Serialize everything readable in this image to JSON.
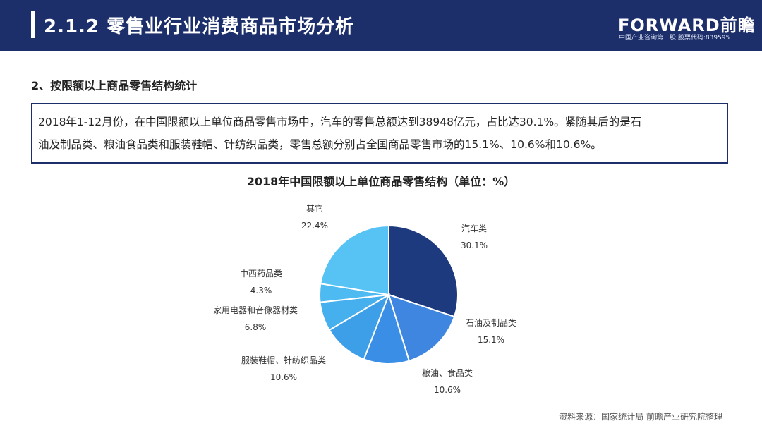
{
  "header": {
    "title": "2.1.2  零售业行业消费商品市场分析",
    "logo": "FORWARD前瞻",
    "logo_sub": "中国产业咨询第一股  股票代码:839595"
  },
  "section_title": "2、按限额以上商品零售结构统计",
  "summary": {
    "line1": "2018年1-12月份，在中国限额以上单位商品零售市场中，汽车的零售总额达到38948亿元，占比达30.1%。紧随其后的是石",
    "line2": "油及制品类、粮油食品类和服装鞋帽、针纺织品类，零售总额分别占全国商品零售市场的15.1%、10.6%和10.6%。"
  },
  "source": "资料来源：国家统计局 前瞻产业研究院整理",
  "chart_data": {
    "type": "pie",
    "title": "2018年中国限额以上单位商品零售结构（单位：%）",
    "slices": [
      {
        "label": "汽车类",
        "value": 30.1,
        "display": "30.1%",
        "color": "#1d3a7e"
      },
      {
        "label": "石油及制品类",
        "value": 15.1,
        "display": "15.1%",
        "color": "#3f86e0"
      },
      {
        "label": "粮油、食品类",
        "value": 10.6,
        "display": "10.6%",
        "color": "#3b8ee6"
      },
      {
        "label": "服装鞋帽、针纺织品类",
        "value": 10.6,
        "display": "10.6%",
        "color": "#3d9fe8"
      },
      {
        "label": "家用电器和音像器材类",
        "value": 6.8,
        "display": "6.8%",
        "color": "#46afee"
      },
      {
        "label": "中西药品类",
        "value": 4.3,
        "display": "4.3%",
        "color": "#4dbaf1"
      },
      {
        "label": "其它",
        "value": 22.4,
        "display": "22.4%",
        "color": "#57c3f5"
      }
    ],
    "legend": "none"
  }
}
